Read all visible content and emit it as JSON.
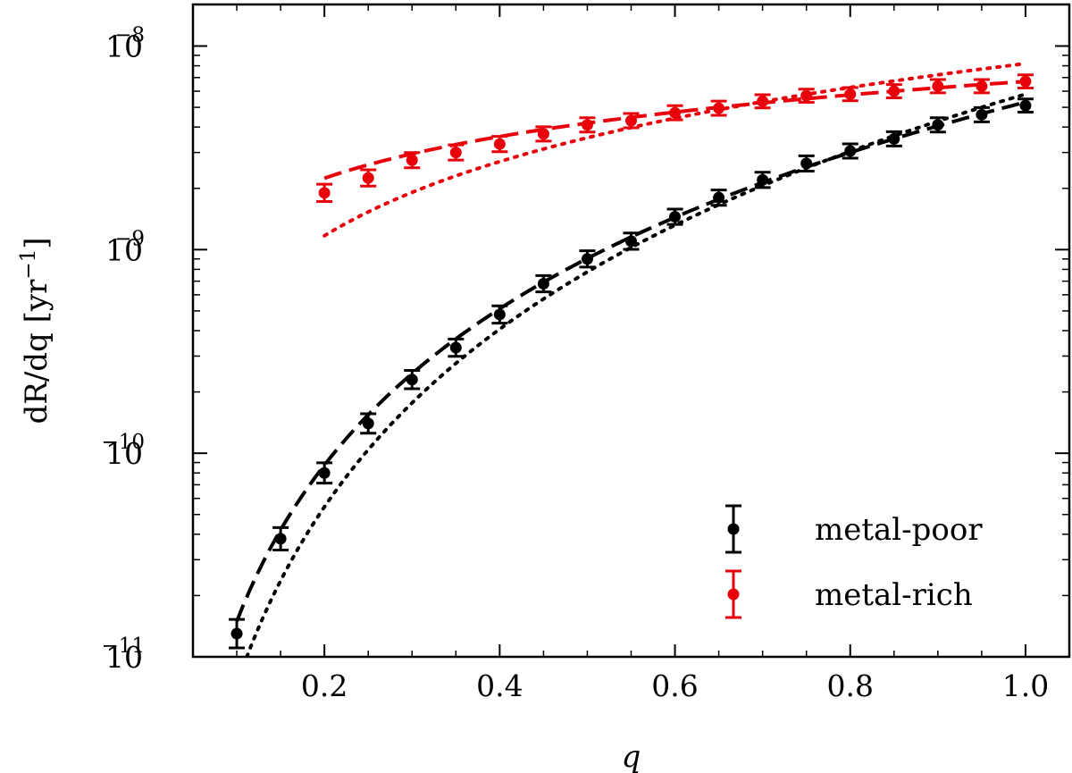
{
  "chart_data": {
    "type": "scatter",
    "title": "",
    "xlabel": "q",
    "ylabel": {
      "prefix": "dR/dq ",
      "unit": "[yr",
      "exp": "−1",
      "close": "]"
    },
    "xlim": [
      0.05,
      1.05
    ],
    "ylim": [
      1e-11,
      1.6e-08
    ],
    "yscale": "log",
    "xticks": [
      0.2,
      0.4,
      0.6,
      0.8,
      1.0
    ],
    "xtick_labels": [
      "0.2",
      "0.4",
      "0.6",
      "0.8",
      "1.0"
    ],
    "yticks": [
      {
        "value": 1e-11,
        "base": "10",
        "exp": "−11"
      },
      {
        "value": 1e-10,
        "base": "10",
        "exp": "−10"
      },
      {
        "value": 1e-09,
        "base": "10",
        "exp": "−9"
      },
      {
        "value": 1e-08,
        "base": "10",
        "exp": "−8"
      }
    ],
    "legend_position": "bottom-right",
    "series": [
      {
        "name": "metal-poor",
        "color": "#000000",
        "points": [
          {
            "x": 0.1,
            "y": 1.3e-11,
            "err": 0.2
          },
          {
            "x": 0.15,
            "y": 3.8e-11,
            "err": 0.14
          },
          {
            "x": 0.2,
            "y": 8e-11,
            "err": 0.12
          },
          {
            "x": 0.25,
            "y": 1.4e-10,
            "err": 0.11
          },
          {
            "x": 0.3,
            "y": 2.3e-10,
            "err": 0.1
          },
          {
            "x": 0.35,
            "y": 3.3e-10,
            "err": 0.09
          },
          {
            "x": 0.4,
            "y": 4.8e-10,
            "err": 0.09
          },
          {
            "x": 0.45,
            "y": 6.8e-10,
            "err": 0.08
          },
          {
            "x": 0.5,
            "y": 9e-10,
            "err": 0.08
          },
          {
            "x": 0.55,
            "y": 1.1e-09,
            "err": 0.08
          },
          {
            "x": 0.6,
            "y": 1.45e-09,
            "err": 0.07
          },
          {
            "x": 0.65,
            "y": 1.8e-09,
            "err": 0.07
          },
          {
            "x": 0.7,
            "y": 2.2e-09,
            "err": 0.07
          },
          {
            "x": 0.75,
            "y": 2.65e-09,
            "err": 0.07
          },
          {
            "x": 0.8,
            "y": 3.05e-09,
            "err": 0.06
          },
          {
            "x": 0.85,
            "y": 3.5e-09,
            "err": 0.06
          },
          {
            "x": 0.9,
            "y": 4.1e-09,
            "err": 0.06
          },
          {
            "x": 0.95,
            "y": 4.6e-09,
            "err": 0.06
          },
          {
            "x": 1.0,
            "y": 5.1e-09,
            "err": 0.05
          }
        ],
        "dashed_fit": {
          "A": 5.3e-09,
          "p": 2.55,
          "x": [
            0.1,
            1.0
          ]
        },
        "dotted_fit": {
          "A": 5.8e-09,
          "p": 2.9,
          "x": [
            0.1,
            1.0
          ]
        }
      },
      {
        "name": "metal-rich",
        "color": "#e8000b",
        "points": [
          {
            "x": 0.2,
            "y": 1.9e-09,
            "err": 0.09
          },
          {
            "x": 0.25,
            "y": 2.25e-09,
            "err": 0.08
          },
          {
            "x": 0.3,
            "y": 2.75e-09,
            "err": 0.07
          },
          {
            "x": 0.35,
            "y": 3e-09,
            "err": 0.07
          },
          {
            "x": 0.4,
            "y": 3.3e-09,
            "err": 0.07
          },
          {
            "x": 0.45,
            "y": 3.7e-09,
            "err": 0.06
          },
          {
            "x": 0.5,
            "y": 4.1e-09,
            "err": 0.06
          },
          {
            "x": 0.55,
            "y": 4.3e-09,
            "err": 0.06
          },
          {
            "x": 0.6,
            "y": 4.7e-09,
            "err": 0.06
          },
          {
            "x": 0.65,
            "y": 4.95e-09,
            "err": 0.06
          },
          {
            "x": 0.7,
            "y": 5.35e-09,
            "err": 0.05
          },
          {
            "x": 0.75,
            "y": 5.7e-09,
            "err": 0.05
          },
          {
            "x": 0.8,
            "y": 5.8e-09,
            "err": 0.05
          },
          {
            "x": 0.85,
            "y": 6e-09,
            "err": 0.05
          },
          {
            "x": 0.9,
            "y": 6.35e-09,
            "err": 0.05
          },
          {
            "x": 0.95,
            "y": 6.35e-09,
            "err": 0.05
          },
          {
            "x": 1.0,
            "y": 6.7e-09,
            "err": 0.05
          }
        ],
        "dashed_fit": {
          "A": 6.7e-09,
          "p": 0.68,
          "x": [
            0.2,
            1.0
          ]
        },
        "dotted_fit": {
          "A": 8.2e-09,
          "p": 1.21,
          "x": [
            0.2,
            1.0
          ]
        }
      }
    ]
  }
}
